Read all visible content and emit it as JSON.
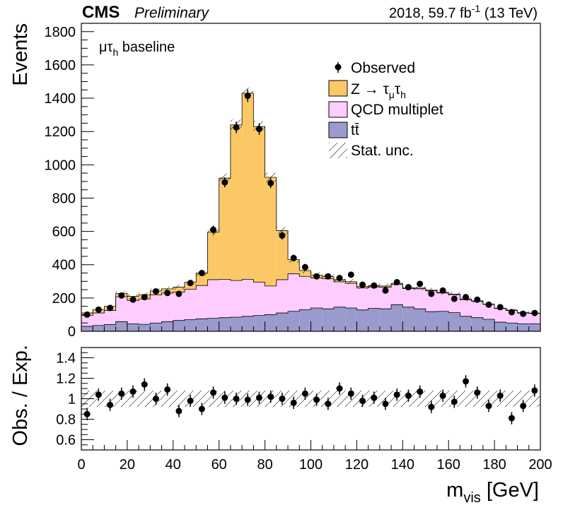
{
  "header": {
    "experiment": "CMS",
    "status": "Preliminary",
    "lumi_main": "2018, 59.7 fb",
    "lumi_exp": "-1",
    "lumi_energy": "(13 TeV)"
  },
  "category": {
    "mu": "μ",
    "tau": "τ",
    "tau_sub": "h",
    "text": "baseline"
  },
  "legend": {
    "observed": "Observed",
    "z_prefix": "Z → ",
    "tau": "τ",
    "mu_sub": "μ",
    "h_sub": "h",
    "qcd": "QCD multiplet",
    "tt": "tt̄",
    "stat": "Stat. unc."
  },
  "axes": {
    "ylabel_main": "Events",
    "ylabel_ratio": "Obs. / Exp.",
    "xlabel": "m",
    "xlabel_sub": "vis",
    "xlabel_unit": "[GeV]"
  },
  "colors": {
    "ztt": "#fcc866",
    "qcd": "#ffccff",
    "tt": "#9a9acc",
    "data": "#000000"
  },
  "chart_data": [
    {
      "type": "bar",
      "stacked": true,
      "x_edges": [
        0,
        5,
        10,
        15,
        20,
        25,
        30,
        35,
        40,
        45,
        50,
        55,
        60,
        65,
        70,
        75,
        80,
        85,
        90,
        95,
        100,
        105,
        110,
        115,
        120,
        125,
        130,
        135,
        140,
        145,
        150,
        155,
        160,
        165,
        170,
        175,
        180,
        185,
        190,
        195,
        200
      ],
      "xlim": [
        0,
        200
      ],
      "ylim": [
        0,
        1850
      ],
      "y_ticks": [
        0,
        200,
        400,
        600,
        800,
        1000,
        1200,
        1400,
        1600,
        1800
      ],
      "ylabel": "Events",
      "series": [
        {
          "name": "tt̄",
          "values": [
            30,
            35,
            40,
            58,
            45,
            42,
            50,
            58,
            65,
            70,
            75,
            78,
            82,
            85,
            90,
            95,
            100,
            110,
            120,
            130,
            140,
            135,
            145,
            140,
            128,
            138,
            135,
            160,
            145,
            135,
            118,
            120,
            112,
            90,
            82,
            72,
            55,
            50,
            45,
            45
          ]
        },
        {
          "name": "QCD multiplet",
          "values": [
            65,
            75,
            85,
            150,
            140,
            152,
            168,
            172,
            170,
            182,
            200,
            232,
            230,
            220,
            222,
            200,
            172,
            200,
            225,
            200,
            180,
            180,
            152,
            148,
            132,
            128,
            130,
            122,
            112,
            120,
            125,
            110,
            108,
            100,
            98,
            90,
            82,
            75,
            65,
            62
          ]
        },
        {
          "name": "Z → τμτh",
          "values": [
            15,
            20,
            25,
            20,
            25,
            26,
            25,
            25,
            30,
            43,
            75,
            285,
            608,
            935,
            1118,
            935,
            653,
            295,
            85,
            35,
            18,
            14,
            13,
            10,
            10,
            8,
            7,
            6,
            5,
            5,
            4,
            4,
            3,
            3,
            3,
            2,
            2,
            2,
            2,
            2
          ]
        },
        {
          "name": "Observed",
          "kind": "points",
          "values": [
            100,
            130,
            140,
            215,
            190,
            205,
            240,
            230,
            225,
            290,
            350,
            610,
            895,
            1225,
            1415,
            1215,
            890,
            575,
            440,
            385,
            330,
            330,
            320,
            340,
            280,
            275,
            245,
            295,
            265,
            285,
            225,
            245,
            195,
            205,
            190,
            160,
            145,
            115,
            105,
            110
          ]
        }
      ]
    },
    {
      "type": "scatter",
      "xlim": [
        0,
        200
      ],
      "ylim": [
        0.5,
        1.5
      ],
      "y_ticks": [
        0.6,
        0.8,
        1,
        1.2,
        1.4
      ],
      "x_ticks": [
        0,
        20,
        40,
        60,
        80,
        100,
        120,
        140,
        160,
        180,
        200
      ],
      "ylabel": "Obs. / Exp.",
      "xlabel": "m vis [GeV]",
      "x": [
        2.5,
        7.5,
        12.5,
        17.5,
        22.5,
        27.5,
        32.5,
        37.5,
        42.5,
        47.5,
        52.5,
        57.5,
        62.5,
        67.5,
        72.5,
        77.5,
        82.5,
        87.5,
        92.5,
        97.5,
        102.5,
        107.5,
        112.5,
        117.5,
        122.5,
        127.5,
        132.5,
        137.5,
        142.5,
        147.5,
        152.5,
        157.5,
        162.5,
        167.5,
        172.5,
        177.5,
        182.5,
        187.5,
        192.5,
        197.5
      ],
      "values": [
        0.85,
        1.04,
        0.94,
        1.05,
        1.07,
        1.14,
        1.0,
        1.09,
        0.88,
        0.98,
        0.9,
        1.06,
        1.01,
        1.0,
        0.99,
        1.01,
        1.02,
        1.0,
        0.96,
        1.05,
        0.99,
        0.95,
        1.1,
        1.05,
        0.98,
        1.01,
        0.95,
        1.04,
        1.03,
        1.07,
        0.92,
        1.03,
        0.97,
        1.17,
        1.06,
        0.93,
        1.03,
        0.81,
        0.93,
        1.08
      ],
      "band": [
        0.92,
        1.08
      ]
    }
  ]
}
